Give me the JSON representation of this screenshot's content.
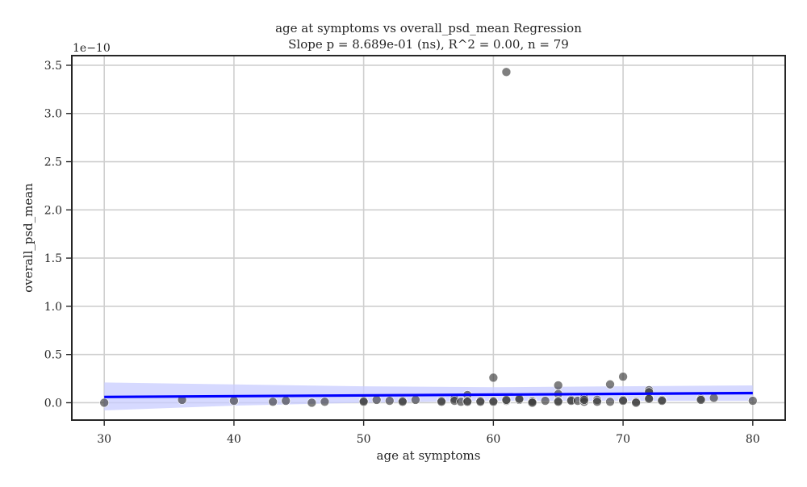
{
  "chart_data": {
    "type": "scatter",
    "title": "age at symptoms vs overall_psd_mean Regression",
    "subtitle": "Slope p = 8.689e-01 (ns), R^2 = 0.00, n = 79",
    "xlabel": "age at symptoms",
    "ylabel": "overall_psd_mean",
    "y_offset_label": "1e−10",
    "xlim": [
      27.5,
      82.5
    ],
    "ylim": [
      -0.18,
      3.6
    ],
    "x_ticks": [
      30,
      40,
      50,
      60,
      70,
      80
    ],
    "y_ticks": [
      0.0,
      0.5,
      1.0,
      1.5,
      2.0,
      2.5,
      3.0,
      3.5
    ],
    "y_tick_labels": [
      "0.0",
      "0.5",
      "1.0",
      "1.5",
      "2.0",
      "2.5",
      "3.0",
      "3.5"
    ],
    "grid": true,
    "points": [
      {
        "x": 30,
        "y": 0.0
      },
      {
        "x": 36,
        "y": 0.03
      },
      {
        "x": 40,
        "y": 0.02
      },
      {
        "x": 43,
        "y": 0.01
      },
      {
        "x": 44,
        "y": 0.02
      },
      {
        "x": 46,
        "y": 0.0
      },
      {
        "x": 47,
        "y": 0.01
      },
      {
        "x": 50,
        "y": 0.02
      },
      {
        "x": 50,
        "y": 0.01
      },
      {
        "x": 51,
        "y": 0.03
      },
      {
        "x": 52,
        "y": 0.02
      },
      {
        "x": 53,
        "y": 0.02
      },
      {
        "x": 53,
        "y": 0.01
      },
      {
        "x": 54,
        "y": 0.03
      },
      {
        "x": 56,
        "y": 0.02
      },
      {
        "x": 56,
        "y": 0.01
      },
      {
        "x": 57,
        "y": 0.04
      },
      {
        "x": 57,
        "y": 0.02
      },
      {
        "x": 57.5,
        "y": 0.01
      },
      {
        "x": 58,
        "y": 0.08
      },
      {
        "x": 58,
        "y": 0.02
      },
      {
        "x": 58,
        "y": 0.01
      },
      {
        "x": 59,
        "y": 0.02
      },
      {
        "x": 59,
        "y": 0.01
      },
      {
        "x": 60,
        "y": 0.26
      },
      {
        "x": 60,
        "y": 0.02
      },
      {
        "x": 60,
        "y": 0.01
      },
      {
        "x": 61,
        "y": 3.43
      },
      {
        "x": 61,
        "y": 0.02
      },
      {
        "x": 61,
        "y": 0.03
      },
      {
        "x": 62,
        "y": 0.03
      },
      {
        "x": 62,
        "y": 0.04
      },
      {
        "x": 63,
        "y": 0.02
      },
      {
        "x": 63,
        "y": 0.01
      },
      {
        "x": 63,
        "y": 0.0
      },
      {
        "x": 64,
        "y": 0.02
      },
      {
        "x": 65,
        "y": 0.18
      },
      {
        "x": 65,
        "y": 0.09
      },
      {
        "x": 65,
        "y": 0.02
      },
      {
        "x": 65,
        "y": 0.01
      },
      {
        "x": 66,
        "y": 0.03
      },
      {
        "x": 66,
        "y": 0.02
      },
      {
        "x": 66.5,
        "y": 0.02
      },
      {
        "x": 67,
        "y": 0.05
      },
      {
        "x": 67,
        "y": 0.01
      },
      {
        "x": 67,
        "y": 0.03
      },
      {
        "x": 68,
        "y": 0.03
      },
      {
        "x": 68,
        "y": 0.01
      },
      {
        "x": 69,
        "y": 0.19
      },
      {
        "x": 69,
        "y": 0.01
      },
      {
        "x": 70,
        "y": 0.27
      },
      {
        "x": 70,
        "y": 0.03
      },
      {
        "x": 70,
        "y": 0.02
      },
      {
        "x": 71,
        "y": 0.01
      },
      {
        "x": 71,
        "y": 0.0
      },
      {
        "x": 72,
        "y": 0.13
      },
      {
        "x": 72,
        "y": 0.11
      },
      {
        "x": 72,
        "y": 0.05
      },
      {
        "x": 72,
        "y": 0.04
      },
      {
        "x": 73,
        "y": 0.03
      },
      {
        "x": 73,
        "y": 0.02
      },
      {
        "x": 76,
        "y": 0.04
      },
      {
        "x": 76,
        "y": 0.03
      },
      {
        "x": 77,
        "y": 0.05
      },
      {
        "x": 80,
        "y": 0.02
      }
    ],
    "regression_line": {
      "x": [
        30,
        80
      ],
      "y": [
        0.06,
        0.1
      ]
    },
    "confidence_band": {
      "x": [
        30,
        40,
        50,
        60,
        70,
        80
      ],
      "upper": [
        0.21,
        0.19,
        0.17,
        0.16,
        0.17,
        0.18
      ],
      "lower": [
        -0.08,
        -0.03,
        0.0,
        0.02,
        0.02,
        0.02
      ]
    },
    "colors": {
      "points": "#3a3a3a",
      "line": "#0000ff",
      "band": "#c8ccff",
      "grid": "#cfcfcf",
      "axes": "#262626"
    }
  }
}
